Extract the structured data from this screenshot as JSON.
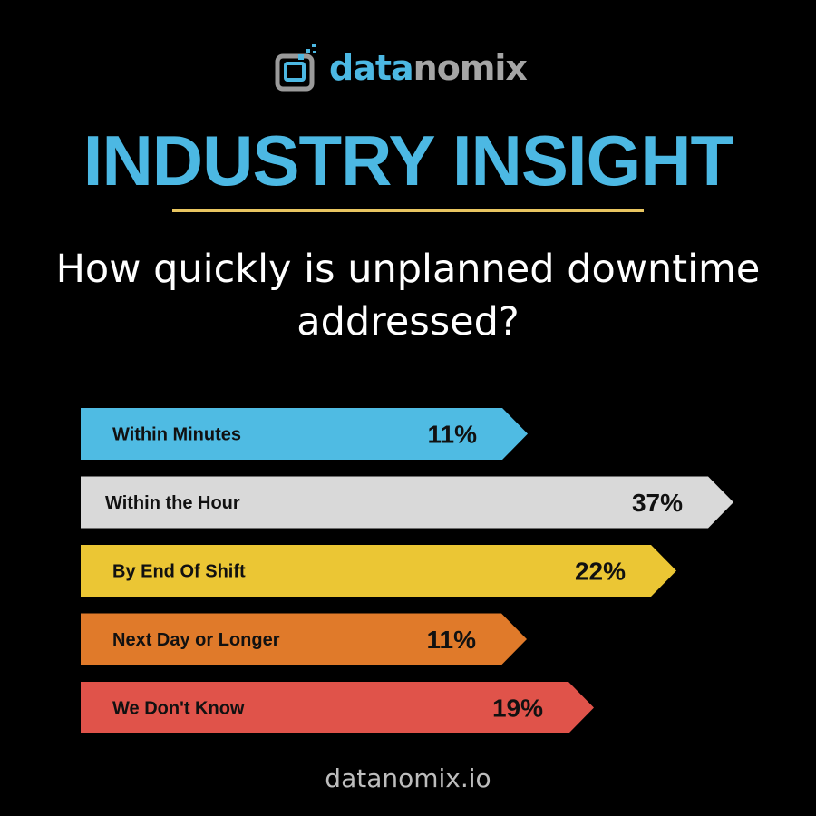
{
  "logo": {
    "part1": "data",
    "part2": "nomix",
    "icon": "datanomix-logo-icon"
  },
  "title": "INDUSTRY INSIGHT",
  "question": "How quickly is unplanned downtime addressed?",
  "footer": "datanomix.io",
  "chart_data": {
    "type": "bar",
    "orientation": "horizontal",
    "title": "How quickly is unplanned downtime addressed?",
    "categories": [
      "Within Minutes",
      "Within the Hour",
      "By End Of Shift",
      "Next Day or Longer",
      "We Don't Know"
    ],
    "values": [
      11,
      37,
      22,
      11,
      19
    ],
    "data_labels": [
      "11%",
      "37%",
      "22%",
      "11%",
      "19%"
    ],
    "colors": [
      "#4fbbe3",
      "#d9d9d9",
      "#ebc634",
      "#e07a2a",
      "#e0534a"
    ],
    "unit": "%",
    "grid": false
  }
}
